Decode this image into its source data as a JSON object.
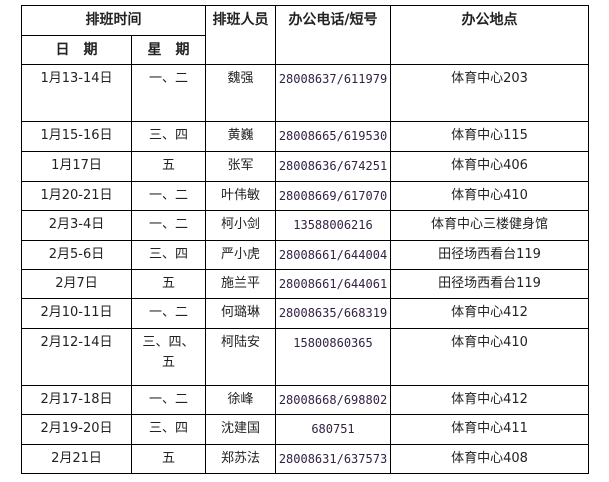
{
  "headers": {
    "time": "排班时间",
    "date": "日　期",
    "weekday": "星　期",
    "staff": "排班人员",
    "phone": "办公电话/短号",
    "location": "办公地点"
  },
  "rows": [
    {
      "date": "1月13-14日",
      "weekday": "一、二",
      "staff": "魏强",
      "phone": "28008637/611979",
      "location": "体育中心203"
    },
    {
      "date": "1月15-16日",
      "weekday": "三、四",
      "staff": "黄巍",
      "phone": "28008665/619530",
      "location": "体育中心115"
    },
    {
      "date": "1月17日",
      "weekday": "五",
      "staff": "张军",
      "phone": "28008636/674251",
      "location": "体育中心406"
    },
    {
      "date": "1月20-21日",
      "weekday": "一、二",
      "staff": "叶伟敏",
      "phone": "28008669/617070",
      "location": "体育中心410"
    },
    {
      "date": "2月3-4日",
      "weekday": "一、二",
      "staff": "柯小剑",
      "phone": "13588006216",
      "location": "体育中心三楼健身馆"
    },
    {
      "date": "2月5-6日",
      "weekday": "三、四",
      "staff": "严小虎",
      "phone": "28008661/644004",
      "location": "田径场西看台119"
    },
    {
      "date": "2月7日",
      "weekday": "五",
      "staff": "施兰平",
      "phone": "28008661/644061",
      "location": "田径场西看台119"
    },
    {
      "date": "2月10-11日",
      "weekday": "一、二",
      "staff": "何璐琳",
      "phone": "28008635/668319",
      "location": "体育中心412"
    },
    {
      "date": "2月12-14日",
      "weekday": "三、四、\n五",
      "staff": "柯陆安",
      "phone": "15800860365",
      "location": "体育中心410"
    },
    {
      "date": "2月17-18日",
      "weekday": "一、二",
      "staff": "徐峰",
      "phone": "28008668/698802",
      "location": "体育中心412"
    },
    {
      "date": "2月19-20日",
      "weekday": "三、四",
      "staff": "沈建国",
      "phone": "680751",
      "location": "体育中心411"
    },
    {
      "date": "2月21日",
      "weekday": "五",
      "staff": "郑苏法",
      "phone": "28008631/637573",
      "location": "体育中心408"
    }
  ]
}
